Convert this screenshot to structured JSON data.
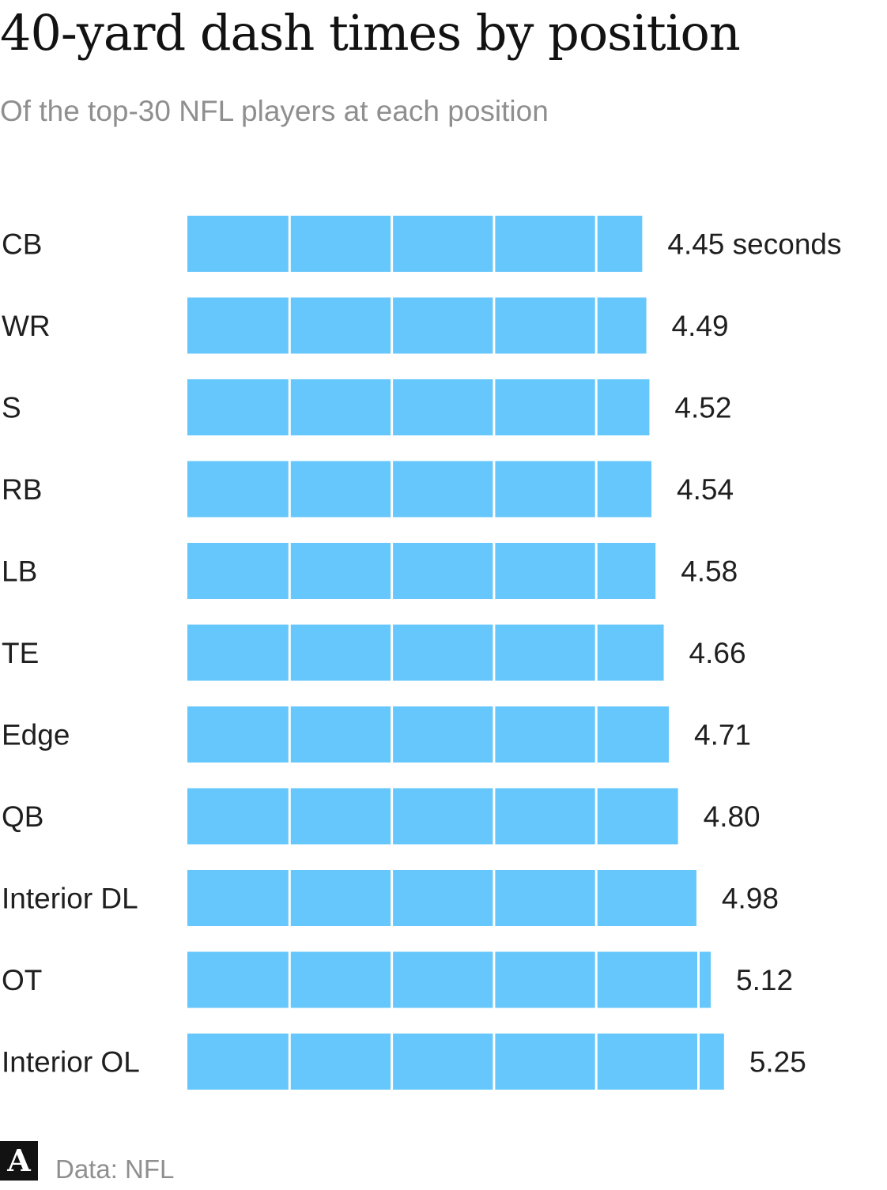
{
  "header": {
    "title": "40-yard dash times by position",
    "subtitle": "Of the top-30 NFL players at each position"
  },
  "footer": {
    "logo_glyph": "A",
    "source": "Data: NFL"
  },
  "colors": {
    "bar": "#66c7fc",
    "segment_divider": "#ffffff"
  },
  "chart_data": {
    "type": "bar",
    "orientation": "horizontal",
    "title": "40-yard dash times by position",
    "subtitle": "Of the top-30 NFL players at each position",
    "categories": [
      "CB",
      "WR",
      "S",
      "RB",
      "LB",
      "TE",
      "Edge",
      "QB",
      "Interior DL",
      "OT",
      "Interior OL"
    ],
    "values": [
      4.45,
      4.49,
      4.52,
      4.54,
      4.58,
      4.66,
      4.71,
      4.8,
      4.98,
      5.12,
      5.25
    ],
    "value_labels": [
      "4.45 seconds",
      "4.49",
      "4.52",
      "4.54",
      "4.58",
      "4.66",
      "4.71",
      "4.80",
      "4.98",
      "5.12",
      "5.25"
    ],
    "segment_unit": 1,
    "xlim": [
      0,
      5.25
    ],
    "grid": false,
    "source": "Data: NFL"
  }
}
